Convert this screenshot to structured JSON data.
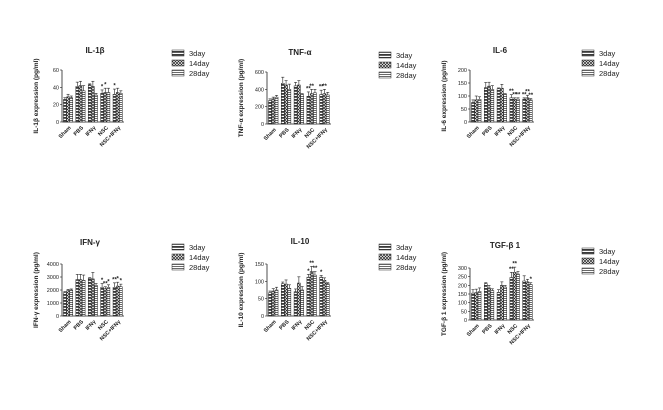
{
  "chart_data": [
    {
      "type": "bar",
      "title": "IL-1β",
      "ylabel": "IL-1β  expression (pg/ml)",
      "yticks": [
        "0",
        "20",
        "40",
        "60"
      ],
      "ylim": [
        0,
        60
      ],
      "categories": [
        "Sham",
        "PBS",
        "IFNγ",
        "NSC",
        "NSC+IFNγ"
      ],
      "series": [
        {
          "name": "3day",
          "values": [
            26,
            41,
            43,
            33,
            32
          ],
          "errors": [
            2,
            5,
            1,
            4,
            6
          ]
        },
        {
          "name": "14day",
          "values": [
            29,
            42,
            41,
            34,
            34
          ],
          "errors": [
            3,
            5,
            6,
            5,
            5
          ]
        },
        {
          "name": "28day",
          "values": [
            28,
            36,
            31,
            34,
            33
          ],
          "errors": [
            2,
            6,
            2,
            5,
            3
          ]
        }
      ],
      "annotations": [
        [
          "",
          "",
          "",
          "*",
          "*"
        ],
        [
          "",
          "",
          "",
          "*",
          ""
        ],
        [
          "",
          "",
          "",
          "",
          ""
        ]
      ]
    },
    {
      "type": "bar",
      "title": "TNF-α",
      "ylabel": "TNF-α  expression (pg/ml)",
      "yticks": [
        "0",
        "200",
        "400",
        "600"
      ],
      "ylim": [
        0,
        600
      ],
      "categories": [
        "Sham",
        "PBS",
        "IFNγ",
        "NSC",
        "NSC+IFNγ"
      ],
      "series": [
        {
          "name": "3day",
          "values": [
            270,
            470,
            440,
            320,
            340
          ],
          "errors": [
            20,
            70,
            40,
            50,
            50
          ]
        },
        {
          "name": "14day",
          "values": [
            290,
            450,
            450,
            350,
            350
          ],
          "errors": [
            20,
            50,
            50,
            50,
            50
          ]
        },
        {
          "name": "28day",
          "values": [
            310,
            400,
            340,
            360,
            335
          ],
          "errors": [
            20,
            60,
            10,
            40,
            30
          ]
        }
      ],
      "annotations": [
        [
          "",
          "",
          "",
          "**",
          "**"
        ],
        [
          "",
          "",
          "",
          "**",
          "**"
        ],
        [
          "",
          "",
          "",
          "",
          ""
        ]
      ]
    },
    {
      "type": "bar",
      "title": "IL-6",
      "ylabel": "IL-6  expression (pg/ml)",
      "yticks": [
        "0",
        "50",
        "100",
        "150",
        "200"
      ],
      "ylim": [
        0,
        200
      ],
      "categories": [
        "Sham",
        "PBS",
        "IFNγ",
        "NSC",
        "NSC+IFNγ"
      ],
      "series": [
        {
          "name": "3day",
          "values": [
            75,
            132,
            128,
            93,
            88
          ],
          "errors": [
            10,
            20,
            3,
            12,
            5
          ]
        },
        {
          "name": "14day",
          "values": [
            85,
            138,
            130,
            88,
            93
          ],
          "errors": [
            15,
            15,
            15,
            5,
            10
          ]
        },
        {
          "name": "28day",
          "values": [
            87,
            125,
            106,
            88,
            85
          ],
          "errors": [
            10,
            15,
            3,
            5,
            5
          ]
        }
      ],
      "annotations": [
        [
          "",
          "",
          "",
          "**",
          "**"
        ],
        [
          "",
          "",
          "",
          "**",
          "**"
        ],
        [
          "",
          "",
          "",
          "**",
          "**"
        ]
      ]
    },
    {
      "type": "bar",
      "title": "IFN-γ",
      "ylabel": "IFN-γ  expression (pg/ml)",
      "yticks": [
        "0",
        "1000",
        "2000",
        "3000",
        "4000"
      ],
      "ylim": [
        0,
        4000
      ],
      "categories": [
        "Sham",
        "PBS",
        "IFNγ",
        "NSC",
        "NSC+IFNγ"
      ],
      "series": [
        {
          "name": "3day",
          "values": [
            1800,
            2800,
            2900,
            2200,
            2200
          ],
          "errors": [
            80,
            400,
            50,
            300,
            350
          ]
        },
        {
          "name": "14day",
          "values": [
            1950,
            2800,
            2850,
            2100,
            2300
          ],
          "errors": [
            100,
            400,
            500,
            150,
            300
          ]
        },
        {
          "name": "28day",
          "values": [
            2000,
            2750,
            2350,
            2200,
            2250
          ],
          "errors": [
            80,
            400,
            150,
            200,
            200
          ]
        }
      ],
      "annotations": [
        [
          "",
          "",
          "",
          "*",
          "**"
        ],
        [
          "",
          "",
          "",
          "**",
          "*"
        ],
        [
          "",
          "",
          "",
          "*",
          "*"
        ]
      ]
    },
    {
      "type": "bar",
      "title": "IL-10",
      "ylabel": "IL-10  expression (pg/ml)",
      "yticks": [
        "0",
        "50",
        "100",
        "150"
      ],
      "ylim": [
        0,
        150
      ],
      "categories": [
        "Sham",
        "PBS",
        "IFNγ",
        "NSC",
        "NSC+IFNγ"
      ],
      "series": [
        {
          "name": "3day",
          "values": [
            67,
            93,
            70,
            112,
            112
          ],
          "errors": [
            5,
            5,
            8,
            8,
            5
          ]
        },
        {
          "name": "14day",
          "values": [
            72,
            92,
            95,
            128,
            103
          ],
          "errors": [
            7,
            12,
            18,
            15,
            7
          ]
        },
        {
          "name": "28day",
          "values": [
            75,
            80,
            75,
            118,
            93
          ],
          "errors": [
            8,
            10,
            10,
            10,
            3
          ]
        }
      ],
      "annotations": [
        [
          "",
          "",
          "",
          "*",
          "*"
        ],
        [
          "",
          "",
          "",
          "**",
          ""
        ],
        [
          "",
          "",
          "",
          "**",
          ""
        ]
      ]
    },
    {
      "type": "bar",
      "title": "TGF-β 1",
      "ylabel": "TGF-β 1 expression (pg/ml)",
      "yticks": [
        "0",
        "50",
        "100",
        "150",
        "200",
        "250",
        "300"
      ],
      "ylim": [
        0,
        300
      ],
      "categories": [
        "Sham",
        "PBS",
        "IFNγ",
        "NSC",
        "NSC+IFNγ"
      ],
      "series": [
        {
          "name": "3day",
          "values": [
            155,
            210,
            160,
            245,
            225
          ],
          "errors": [
            20,
            5,
            15,
            30,
            30
          ]
        },
        {
          "name": "14day",
          "values": [
            158,
            185,
            200,
            275,
            220
          ],
          "errors": [
            20,
            15,
            20,
            30,
            15
          ]
        },
        {
          "name": "28day",
          "values": [
            165,
            170,
            190,
            265,
            205
          ],
          "errors": [
            20,
            10,
            10,
            15,
            10
          ]
        }
      ],
      "annotations": [
        [
          "",
          "",
          "",
          "**",
          ""
        ],
        [
          "",
          "",
          "",
          "**",
          ""
        ],
        [
          "",
          "",
          "",
          "",
          "*"
        ]
      ]
    }
  ]
}
